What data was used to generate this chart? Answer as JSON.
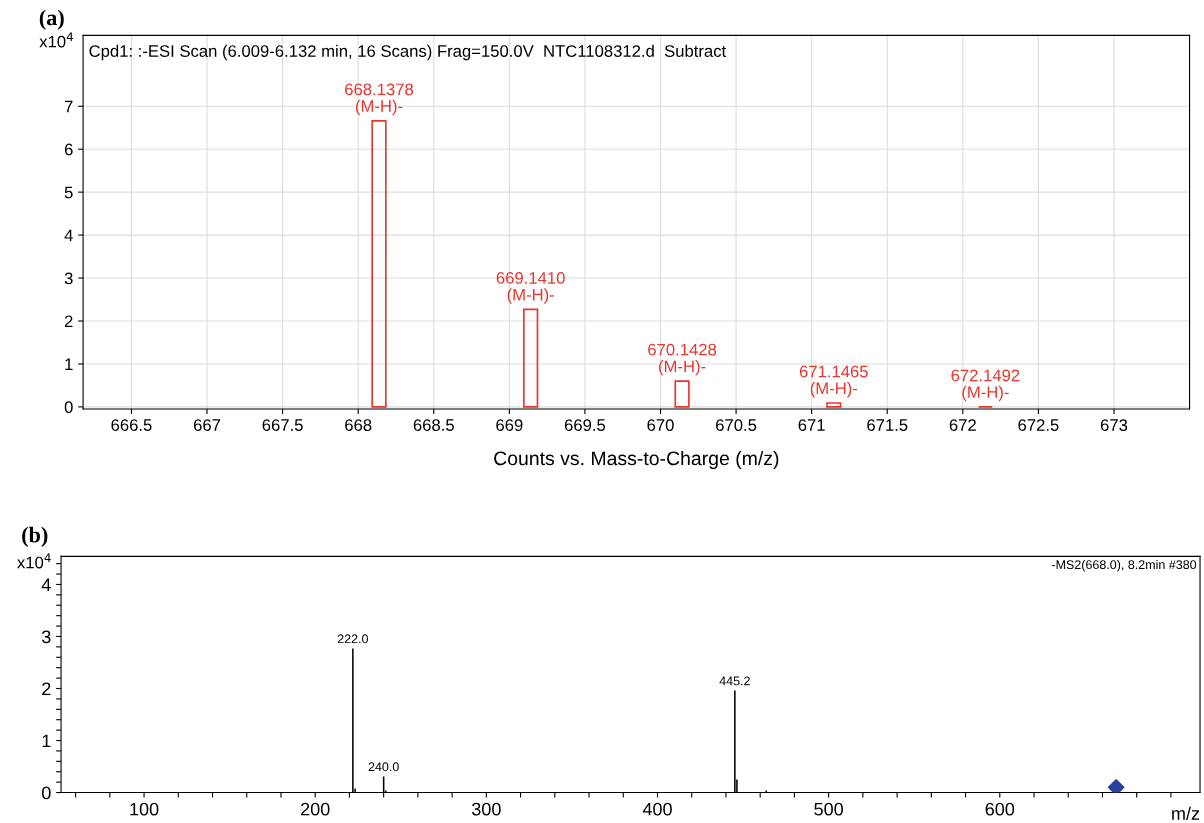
{
  "chart_data": [
    {
      "type": "bar",
      "title": "Cpd1: :-ESI Scan (6.009-6.132 min, 16 Scans) Frag=150.0V  NTC1108312.d  Subtract",
      "xlabel": "Counts vs. Mass-to-Charge (m/z)",
      "ylabel": "x10$^{4}$",
      "series": [
        {
          "color": "#e8352e",
          "x": [
            668.1378,
            669.141,
            670.1428,
            671.1465,
            672.1492
          ],
          "values": [
            6.66,
            2.27,
            0.6,
            0.09,
            0
          ]
        }
      ],
      "annotations": [
        "(a)",
        {
          "text": "668.1378\n(M-H)-",
          "x": 668.1378,
          "y": 6.66
        },
        {
          "text": "669.1410\n(M-H)-",
          "x": 669.141,
          "y": 2.27
        },
        {
          "text": "670.1428\n(M-H)-",
          "x": 670.1428,
          "y": 0.6
        },
        {
          "text": "671.1465\n(M-H)-",
          "x": 671.1465,
          "y": 0.09
        },
        {
          "text": "672.1492\n(M-H)-",
          "x": 672.1492,
          "y": 0
        }
      ],
      "xlim": [
        666.18,
        673.5
      ],
      "xticks": [
        666.5,
        667,
        667.5,
        668,
        668.5,
        669,
        669.5,
        670,
        670.5,
        671,
        671.5,
        672,
        672.5,
        673
      ],
      "ylim": [
        -0.05,
        8.65
      ],
      "yticks": [
        0,
        1,
        2,
        3,
        4,
        5,
        6,
        7
      ],
      "grid": true,
      "legend": false
    },
    {
      "type": "bar",
      "xlabel": "m/z",
      "ylabel": "x10$^{4}$",
      "series": [
        {
          "color": "#000000",
          "x": [
            222.0,
            223.3,
            240.0,
            241.2,
            445.2,
            446.4,
            463.5
          ],
          "values": [
            2.77,
            0.08,
            0.31,
            0.04,
            1.96,
            0.25,
            0.04
          ]
        },
        {
          "type": "scatter",
          "color": "#2b3f9e",
          "marker": "diamond",
          "x": [
            668.0
          ],
          "values": [
            0.1
          ]
        }
      ],
      "annotations": [
        "(b)",
        "-MS2(668.0), 8.2min #380",
        {
          "text": "222.0",
          "x": 222.0,
          "y": 2.77
        },
        {
          "text": "240.0",
          "x": 240.0,
          "y": 0.31
        },
        {
          "text": "445.2",
          "x": 445.2,
          "y": 1.96
        }
      ],
      "xlim": [
        51.5,
        717
      ],
      "xticks": [
        {
          "value": 60,
          "label": null
        },
        {
          "value": 80,
          "label": null
        },
        100,
        {
          "value": 120,
          "label": null
        },
        {
          "value": 140,
          "label": null
        },
        {
          "value": 160,
          "label": null
        },
        {
          "value": 180,
          "label": null
        },
        200,
        {
          "value": 220,
          "label": null
        },
        {
          "value": 240,
          "label": null
        },
        {
          "value": 260,
          "label": null
        },
        {
          "value": 280,
          "label": null
        },
        300,
        {
          "value": 320,
          "label": null
        },
        {
          "value": 340,
          "label": null
        },
        {
          "value": 360,
          "label": null
        },
        {
          "value": 380,
          "label": null
        },
        400,
        {
          "value": 420,
          "label": null
        },
        {
          "value": 440,
          "label": null
        },
        {
          "value": 460,
          "label": null
        },
        {
          "value": 480,
          "label": null
        },
        500,
        {
          "value": 520,
          "label": null
        },
        {
          "value": 540,
          "label": null
        },
        {
          "value": 560,
          "label": null
        },
        {
          "value": 580,
          "label": null
        },
        600,
        {
          "value": 620,
          "label": null
        },
        {
          "value": 640,
          "label": null
        },
        {
          "value": 660,
          "label": null
        },
        {
          "value": 680,
          "label": null
        },
        {
          "value": 700,
          "label": null
        }
      ],
      "ylim": [
        0,
        4.54
      ],
      "yticks": [
        0,
        {
          "value": 0.2,
          "label": null
        },
        {
          "value": 0.4,
          "label": null
        },
        {
          "value": 0.6,
          "label": null
        },
        {
          "value": 0.8,
          "label": null
        },
        1,
        {
          "value": 1.2,
          "label": null
        },
        {
          "value": 1.4,
          "label": null
        },
        {
          "value": 1.6,
          "label": null
        },
        {
          "value": 1.8,
          "label": null
        },
        2,
        {
          "value": 2.2,
          "label": null
        },
        {
          "value": 2.4,
          "label": null
        },
        {
          "value": 2.6,
          "label": null
        },
        {
          "value": 2.8,
          "label": null
        },
        3,
        {
          "value": 3.2,
          "label": null
        },
        {
          "value": 3.4,
          "label": null
        },
        {
          "value": 3.6,
          "label": null
        },
        {
          "value": 3.8,
          "label": null
        },
        4,
        {
          "value": 4.2,
          "label": null
        },
        {
          "value": 4.4,
          "label": null
        }
      ],
      "grid": false,
      "legend": false
    }
  ]
}
